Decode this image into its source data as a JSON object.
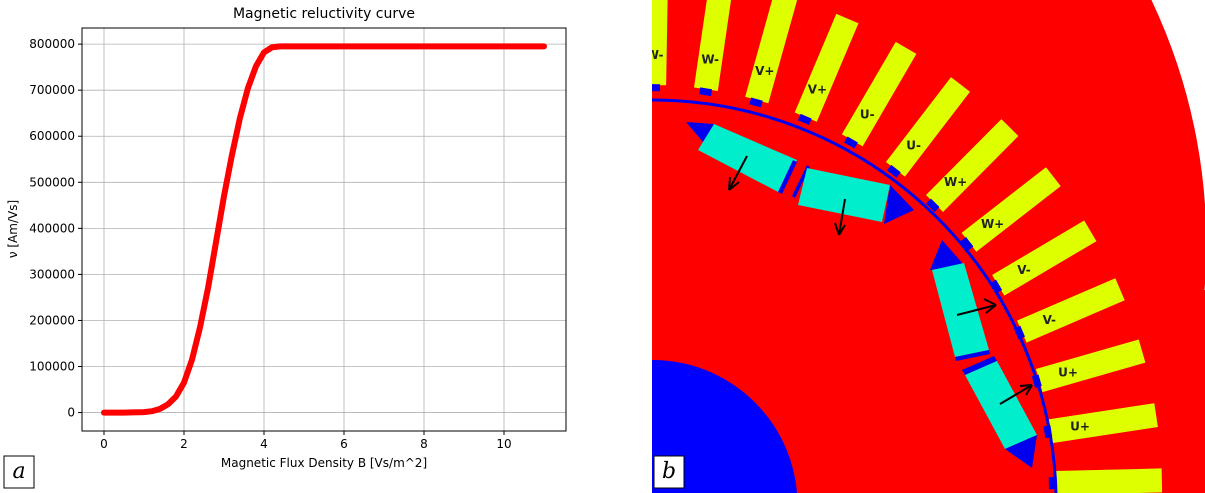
{
  "panels": {
    "left_label": "a",
    "right_label": "b"
  },
  "chart_data": {
    "type": "line",
    "title": "Magnetic reluctivity curve",
    "xlabel": "Magnetic Flux Density B [Vs/m^2]",
    "ylabel": "ν [Am/Vs]",
    "xlim": [
      -0.55,
      11.55
    ],
    "ylim": [
      -40000,
      835000
    ],
    "xticks": [
      0,
      2,
      4,
      6,
      8,
      10
    ],
    "yticks": [
      0,
      100000,
      200000,
      300000,
      400000,
      500000,
      600000,
      700000,
      800000
    ],
    "grid": true,
    "series": [
      {
        "color": "#ff0000",
        "x": [
          0,
          0.5,
          1.0,
          1.2,
          1.4,
          1.6,
          1.8,
          2.0,
          2.2,
          2.4,
          2.6,
          2.8,
          3.0,
          3.2,
          3.4,
          3.6,
          3.8,
          4.0,
          4.2,
          4.4,
          5,
          6,
          7,
          8,
          9,
          10,
          11
        ],
        "y": [
          0,
          0,
          1000,
          3000,
          8000,
          18000,
          35000,
          65000,
          115000,
          185000,
          270000,
          370000,
          470000,
          560000,
          640000,
          705000,
          752000,
          782000,
          793000,
          795000,
          795000,
          795000,
          795000,
          795000,
          795000,
          795000,
          795000
        ]
      }
    ]
  },
  "motor": {
    "colors": {
      "iron": "#ff0000",
      "shaft": "#0000ff",
      "magnet": "#00eecc",
      "coil": "#ddff00",
      "air_gap": "#0000ee"
    },
    "slot_labels": [
      "W-",
      "W-",
      "V+",
      "V+",
      "U-",
      "U-",
      "W+",
      "W+",
      "V-",
      "V-",
      "U+",
      "U+"
    ]
  }
}
